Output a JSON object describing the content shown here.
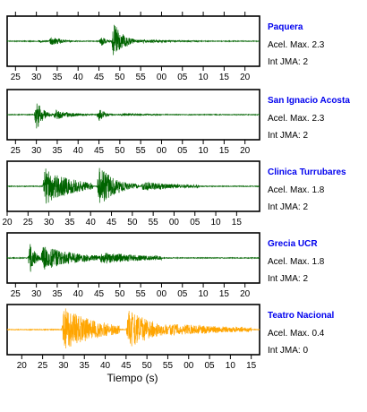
{
  "chart_data": {
    "type": "line",
    "xlabel": "Tiempo (s)",
    "label_color": "#0000ee",
    "panels": [
      {
        "station": "Paquera",
        "acel_max": "Acel. Max. 2.3",
        "int_jma": "Int JMA: 2",
        "color": "#006400",
        "tick_labels": [
          "25",
          "30",
          "35",
          "40",
          "45",
          "50",
          "55",
          "00",
          "05",
          "10",
          "15",
          "20"
        ],
        "x_start": 23.0,
        "x_end": 83.5,
        "ticks_on_top": true,
        "bursts": [
          {
            "t": 30.5,
            "amp": 0.12,
            "decay": 0.9,
            "dur": 3
          },
          {
            "t": 33.0,
            "amp": 0.22,
            "decay": 0.35,
            "dur": 10
          },
          {
            "t": 45.0,
            "amp": 0.35,
            "decay": 0.8,
            "dur": 4
          },
          {
            "t": 48.0,
            "amp": 1.0,
            "decay": 0.45,
            "dur": 8
          },
          {
            "t": 55.0,
            "amp": 0.08,
            "decay": 0.1,
            "dur": 15
          }
        ]
      },
      {
        "station": "San Ignacio Acosta",
        "acel_max": "Acel. Max. 2.3",
        "int_jma": "Int JMA: 2",
        "color": "#006400",
        "tick_labels": [
          "25",
          "30",
          "35",
          "40",
          "45",
          "50",
          "55",
          "00",
          "05",
          "10",
          "15",
          "20"
        ],
        "x_start": 23.0,
        "x_end": 83.5,
        "ticks_on_top": false,
        "bursts": [
          {
            "t": 29.5,
            "amp": 1.0,
            "decay": 0.7,
            "dur": 5
          },
          {
            "t": 34.0,
            "amp": 0.25,
            "decay": 0.25,
            "dur": 12
          },
          {
            "t": 44.5,
            "amp": 0.45,
            "decay": 0.7,
            "dur": 5
          },
          {
            "t": 50.0,
            "amp": 0.06,
            "decay": 0.1,
            "dur": 10
          }
        ]
      },
      {
        "station": "Clinica Turrubares",
        "acel_max": "Acel. Max. 1.8",
        "int_jma": "Int JMA: 2",
        "color": "#006400",
        "tick_labels": [
          "20",
          "25",
          "30",
          "35",
          "40",
          "45",
          "50",
          "55",
          "00",
          "05",
          "10",
          "15"
        ],
        "x_start": 20.0,
        "x_end": 80.5,
        "ticks_on_top": false,
        "bursts": [
          {
            "t": 28.5,
            "amp": 0.85,
            "decay": 0.15,
            "dur": 12
          },
          {
            "t": 41.5,
            "amp": 1.0,
            "decay": 0.25,
            "dur": 10
          },
          {
            "t": 52.0,
            "amp": 0.2,
            "decay": 0.1,
            "dur": 14
          }
        ]
      },
      {
        "station": "Grecia UCR",
        "acel_max": "Acel. Max. 1.8",
        "int_jma": "Int JMA: 2",
        "color": "#006400",
        "tick_labels": [
          "25",
          "30",
          "35",
          "40",
          "45",
          "50",
          "55",
          "00",
          "05",
          "10",
          "15",
          "20"
        ],
        "x_start": 23.0,
        "x_end": 83.5,
        "ticks_on_top": false,
        "bursts": [
          {
            "t": 28.0,
            "amp": 1.0,
            "decay": 0.8,
            "dur": 5
          },
          {
            "t": 31.0,
            "amp": 0.55,
            "decay": 0.12,
            "dur": 18
          },
          {
            "t": 45.0,
            "amp": 0.25,
            "decay": 0.08,
            "dur": 15
          }
        ]
      },
      {
        "station": "Teatro Nacional",
        "acel_max": "Acel. Max. 0.4",
        "int_jma": "Int JMA: 0",
        "color": "#ffa500",
        "tick_labels": [
          "20",
          "25",
          "30",
          "35",
          "40",
          "45",
          "50",
          "55",
          "00",
          "05",
          "10",
          "15"
        ],
        "x_start": 16.5,
        "x_end": 77.0,
        "ticks_on_top": false,
        "bursts": [
          {
            "t": 29.5,
            "amp": 1.0,
            "decay": 0.12,
            "dur": 14
          },
          {
            "t": 45.0,
            "amp": 0.9,
            "decay": 0.15,
            "dur": 10
          },
          {
            "t": 55.0,
            "amp": 0.25,
            "decay": 0.05,
            "dur": 20
          }
        ]
      }
    ]
  }
}
